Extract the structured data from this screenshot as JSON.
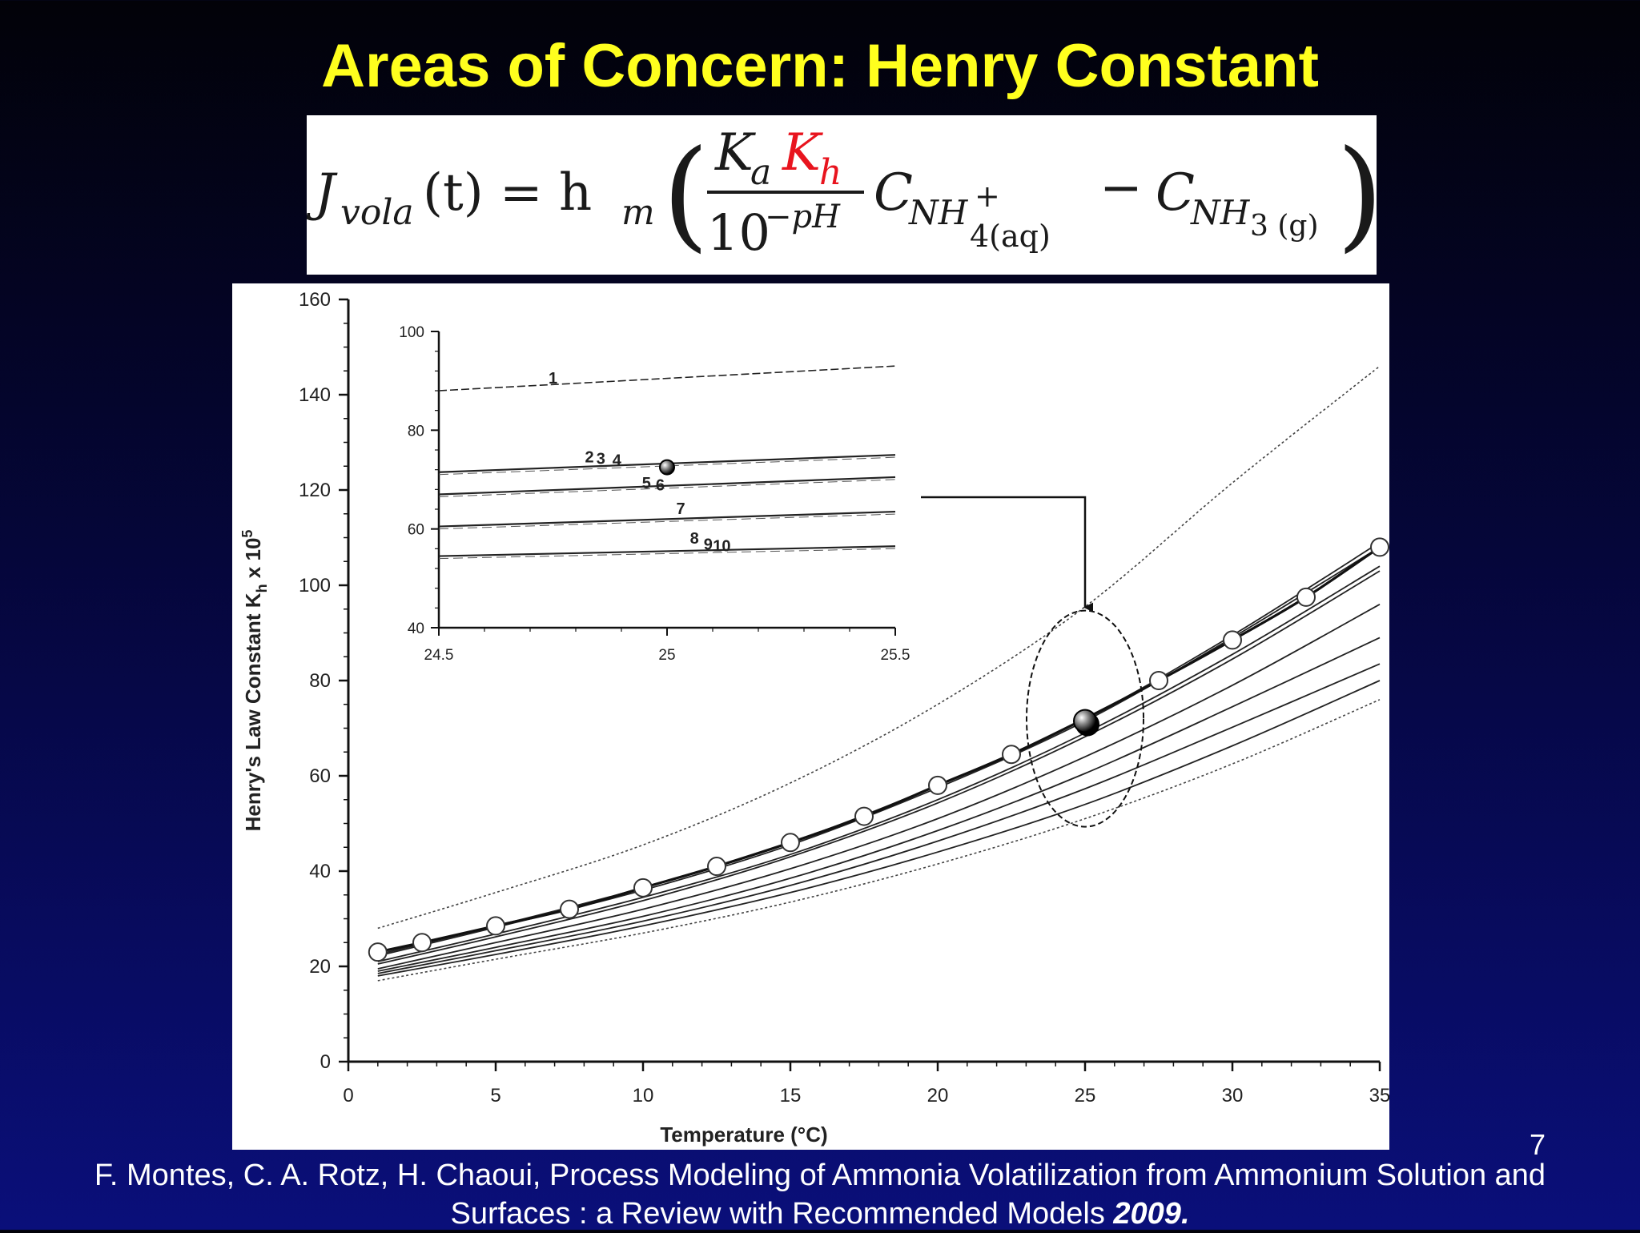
{
  "slide": {
    "title": "Areas of Concern: Henry Constant",
    "slide_number": "7",
    "citation_text": "F. Montes, C. A. Rotz, H. Chaoui, Process Modeling of Ammonia Volatilization from Ammonium Solution and Surfaces : a Review with Recommended Models ",
    "citation_year": "2009.",
    "title_color": "#ffff1e",
    "highlight_color": "#e8141e"
  },
  "equation": {
    "J": "J",
    "J_sub": "vola",
    "t_arg": "(t) = h",
    "hm_sub": "m",
    "Ka": "K",
    "Ka_sub": "a",
    "Kh": "K",
    "Kh_sub": "h",
    "denominator_base": "10",
    "denominator_exp": "−pH",
    "C1": "C",
    "C1_sub": "NH",
    "C1_sup": "+",
    "C1_sub2": "4(aq)",
    "minus": "−",
    "C2": "C",
    "C2_sub": "NH",
    "C2_sub2": "3 (g)"
  },
  "chart_data": [
    {
      "type": "line",
      "title": "",
      "xlabel": "Temperature (°C)",
      "ylabel": "Henry's Law Constant K",
      "ylabel_sub": "h",
      "ylabel_tail": " x 10",
      "ylabel_sup": "5",
      "xlim": [
        0,
        35
      ],
      "ylim": [
        0,
        160
      ],
      "xticks": [
        "0",
        "5",
        "10",
        "15",
        "20",
        "25",
        "30",
        "35"
      ],
      "yticks": [
        "0",
        "20",
        "40",
        "60",
        "80",
        "100",
        "120",
        "140",
        "160"
      ],
      "grid": false,
      "series": [
        {
          "label": "1",
          "style": "dotted",
          "x": [
            1,
            5,
            10,
            15,
            20,
            25,
            30,
            35
          ],
          "y": [
            28,
            35.5,
            45.5,
            58.5,
            75,
            95.5,
            121.5,
            146
          ]
        },
        {
          "label": "2",
          "style": "solid",
          "x": [
            1,
            5,
            10,
            15,
            20,
            25,
            30,
            35
          ],
          "y": [
            22.5,
            28.5,
            36.5,
            46,
            58,
            72,
            89.5,
            109
          ]
        },
        {
          "label": "3",
          "style": "solid",
          "x": [
            1,
            5,
            10,
            15,
            20,
            25,
            30,
            35
          ],
          "y": [
            22.2,
            28.2,
            36,
            45.5,
            57.5,
            71.5,
            89,
            108
          ]
        },
        {
          "label": "5",
          "style": "solid",
          "x": [
            1,
            5,
            10,
            15,
            20,
            25,
            30,
            35
          ],
          "y": [
            21,
            26.8,
            34.5,
            43.5,
            55,
            69,
            85.5,
            104
          ]
        },
        {
          "label": "6",
          "style": "solid",
          "x": [
            1,
            5,
            10,
            15,
            20,
            25,
            30,
            35
          ],
          "y": [
            20.5,
            26.2,
            33.8,
            43,
            54.3,
            68.2,
            84.5,
            103
          ]
        },
        {
          "label": "7",
          "style": "solid",
          "x": [
            1,
            5,
            10,
            15,
            20,
            25,
            30,
            35
          ],
          "y": [
            19.5,
            25,
            32,
            40.5,
            51,
            64,
            79,
            96
          ]
        },
        {
          "label": "8",
          "style": "solid",
          "x": [
            1,
            5,
            10,
            15,
            20,
            25,
            30,
            35
          ],
          "y": [
            19,
            24,
            30.5,
            38.5,
            48.5,
            60.5,
            74.5,
            89
          ]
        },
        {
          "label": "9",
          "style": "solid",
          "x": [
            1,
            5,
            10,
            15,
            20,
            25,
            30,
            35
          ],
          "y": [
            18.5,
            23.3,
            29.5,
            37,
            46.3,
            57.3,
            70.2,
            83.5
          ]
        },
        {
          "label": "10",
          "style": "solid",
          "x": [
            1,
            5,
            10,
            15,
            20,
            25,
            30,
            35
          ],
          "y": [
            18,
            22.5,
            28.5,
            35.5,
            44,
            54,
            66.3,
            80
          ]
        },
        {
          "label": "",
          "style": "dotted",
          "x": [
            1,
            5,
            10,
            15,
            20,
            25,
            30,
            35
          ],
          "y": [
            17,
            21.5,
            27,
            33.5,
            41.5,
            51,
            62.5,
            76
          ]
        },
        {
          "label": "4",
          "style": "markers",
          "x": [
            1,
            2.5,
            5,
            7.5,
            10,
            12.5,
            15,
            17.5,
            20,
            22.5,
            25,
            27.5,
            30,
            32.5,
            35
          ],
          "y": [
            23,
            25,
            28.5,
            32,
            36.5,
            41,
            46,
            51.5,
            58,
            64.5,
            72,
            80,
            88.5,
            97.5,
            108
          ]
        }
      ],
      "highlight_point": {
        "x": 25,
        "y": 71.5
      }
    },
    {
      "type": "line",
      "title": "inset",
      "xlim": [
        24.5,
        25.5
      ],
      "ylim": [
        40,
        100
      ],
      "xticks": [
        "24.5",
        "25",
        "25.5"
      ],
      "yticks": [
        "40",
        "60",
        "80",
        "100"
      ],
      "series": [
        {
          "label": "1",
          "style": "dashed",
          "x": [
            24.5,
            25.5
          ],
          "y": [
            88,
            93
          ]
        },
        {
          "label": "2 3 4",
          "style": "solid",
          "x": [
            24.5,
            25.5
          ],
          "y": [
            71.5,
            75
          ]
        },
        {
          "label": "5 6",
          "style": "solid",
          "x": [
            24.5,
            25.5
          ],
          "y": [
            67,
            70.5
          ]
        },
        {
          "label": "7",
          "style": "solid",
          "x": [
            24.5,
            25.5
          ],
          "y": [
            60.5,
            63.5
          ]
        },
        {
          "label": "8 9 10",
          "style": "solid",
          "x": [
            24.5,
            25.5
          ],
          "y": [
            54.5,
            56.5
          ]
        }
      ],
      "series_labels": [
        "1",
        "2",
        "3",
        "4",
        "5",
        "6",
        "7",
        "8",
        "9",
        "10"
      ],
      "marker": {
        "x": 25,
        "y": 72.5
      }
    }
  ]
}
